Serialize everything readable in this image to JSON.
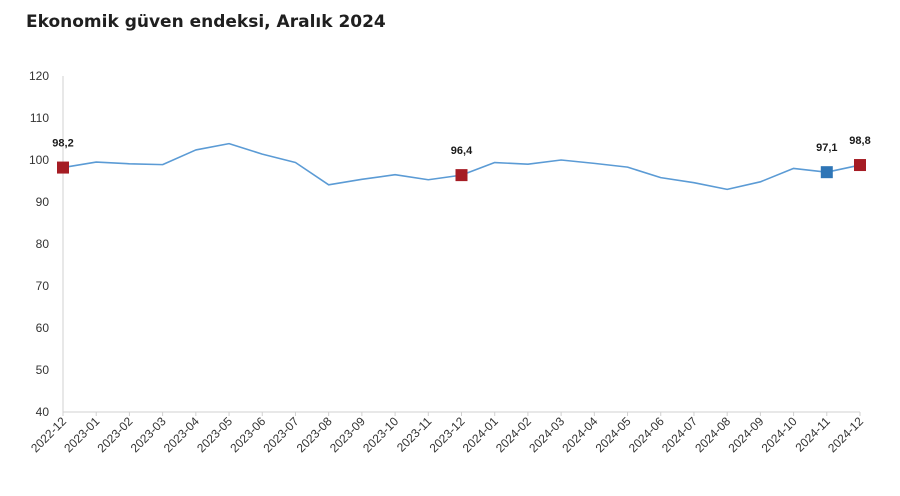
{
  "title": "Ekonomik güven endeksi, Aralık 2024",
  "chart_data": {
    "type": "line",
    "title": "Ekonomik güven endeksi, Aralık 2024",
    "xlabel": "",
    "ylabel": "",
    "ylim": [
      40,
      120
    ],
    "yticks": [
      40,
      50,
      60,
      70,
      80,
      90,
      100,
      110,
      120
    ],
    "grid": false,
    "categories": [
      "2022-12",
      "2023-01",
      "2023-02",
      "2023-03",
      "2023-04",
      "2023-05",
      "2023-06",
      "2023-07",
      "2023-08",
      "2023-09",
      "2023-10",
      "2023-11",
      "2023-12",
      "2024-01",
      "2024-02",
      "2024-03",
      "2024-04",
      "2024-05",
      "2024-06",
      "2024-07",
      "2024-08",
      "2024-09",
      "2024-10",
      "2024-11",
      "2024-12"
    ],
    "series": [
      {
        "values": [
          98.2,
          99.5,
          99.1,
          98.9,
          102.4,
          103.9,
          101.4,
          99.4,
          94.1,
          95.4,
          96.5,
          95.3,
          96.4,
          99.4,
          99.0,
          100.0,
          99.2,
          98.3,
          95.8,
          94.6,
          93.0,
          94.8,
          98.0,
          97.1,
          98.8
        ],
        "color": "#5b9bd5"
      }
    ],
    "highlights": [
      {
        "index": 0,
        "label": "98,2",
        "color": "#a51c24"
      },
      {
        "index": 12,
        "label": "96,4",
        "color": "#a51c24"
      },
      {
        "index": 23,
        "label": "97,1",
        "color": "#2e75b6"
      },
      {
        "index": 24,
        "label": "98,8",
        "color": "#a51c24"
      }
    ]
  }
}
